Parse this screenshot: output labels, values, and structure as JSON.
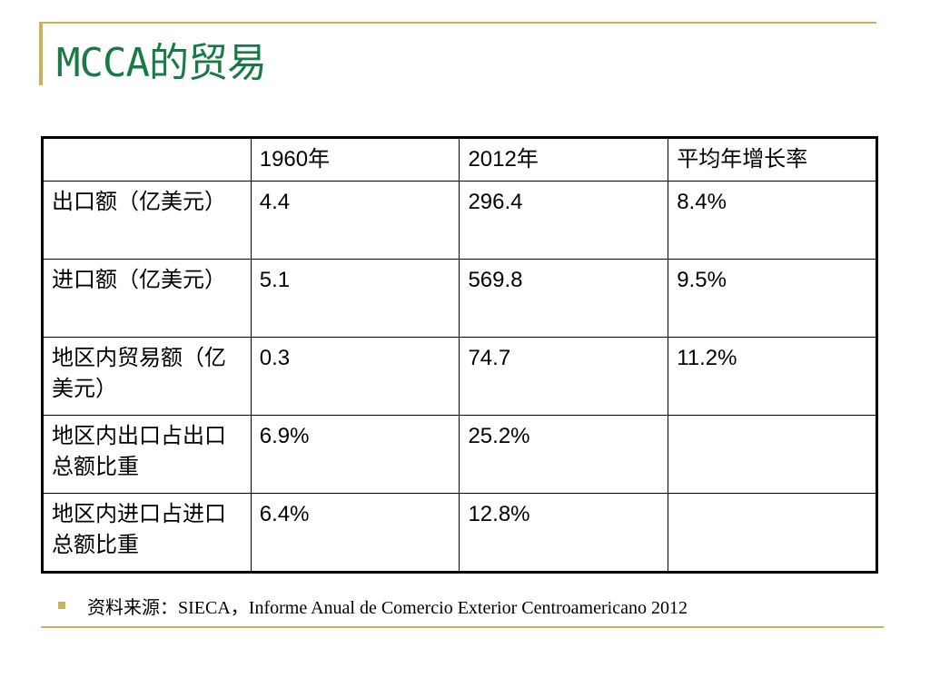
{
  "slide": {
    "title": "MCCA的贸易",
    "accent_color": "#c8b25c",
    "title_color": "#1a7a46"
  },
  "table": {
    "headers": [
      "",
      "1960年",
      "2012年",
      "平均年增长率"
    ],
    "rows": [
      [
        "出口额（亿美元）",
        "4.4",
        "296.4",
        "8.4%"
      ],
      [
        "进口额（亿美元）",
        "5.1",
        "569.8",
        "9.5%"
      ],
      [
        "地区内贸易额（亿美元）",
        "0.3",
        "74.7",
        "11.2%"
      ],
      [
        "地区内出口占出口总额比重",
        "6.9%",
        "25.2%",
        ""
      ],
      [
        "地区内进口占进口总额比重",
        "6.4%",
        "12.8%",
        ""
      ]
    ]
  },
  "source": {
    "text": "资料来源：SIECA，Informe Anual de Comercio Exterior Centroamericano 2012"
  }
}
